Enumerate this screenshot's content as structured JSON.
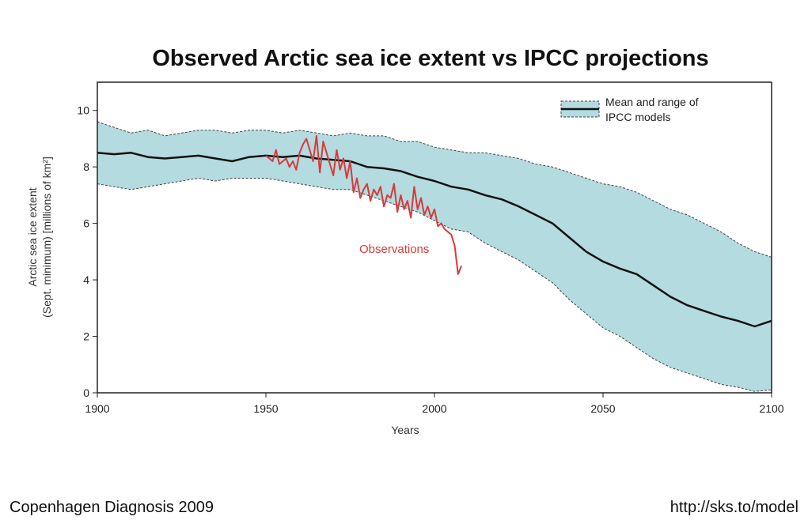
{
  "chart_data": {
    "type": "line",
    "title": "Observed Arctic sea ice extent vs IPCC projections",
    "xlabel": "Years",
    "ylabel_line1": "Arctic sea ice extent",
    "ylabel_line2": "(Sept. minimum) [millions of km²]",
    "xlim": [
      1900,
      2100
    ],
    "ylim": [
      0,
      11
    ],
    "x_ticks": [
      1900,
      1950,
      2000,
      2050,
      2100
    ],
    "y_ticks": [
      0,
      2,
      4,
      6,
      8,
      10
    ],
    "legend": {
      "position": "top-right",
      "line1": "Mean and range of",
      "line2": "IPCC models"
    },
    "annotation": "Observations",
    "colors": {
      "band_fill": "#b3dbe0",
      "band_edge": "#444444",
      "mean": "#111111",
      "observations": "#d83a3a"
    },
    "series": [
      {
        "name": "IPCC model mean",
        "x": [
          1900,
          1905,
          1910,
          1915,
          1920,
          1925,
          1930,
          1935,
          1940,
          1945,
          1950,
          1955,
          1960,
          1965,
          1970,
          1975,
          1980,
          1985,
          1990,
          1995,
          2000,
          2005,
          2010,
          2015,
          2020,
          2025,
          2030,
          2035,
          2040,
          2045,
          2050,
          2055,
          2060,
          2065,
          2070,
          2075,
          2080,
          2085,
          2090,
          2095,
          2100
        ],
        "y": [
          8.5,
          8.45,
          8.5,
          8.35,
          8.3,
          8.35,
          8.4,
          8.3,
          8.2,
          8.35,
          8.4,
          8.35,
          8.4,
          8.3,
          8.25,
          8.2,
          8.0,
          7.95,
          7.85,
          7.65,
          7.5,
          7.3,
          7.2,
          7.0,
          6.85,
          6.6,
          6.3,
          6.0,
          5.5,
          5.0,
          4.65,
          4.4,
          4.2,
          3.8,
          3.4,
          3.1,
          2.9,
          2.7,
          2.55,
          2.35,
          2.55
        ]
      },
      {
        "name": "IPCC range upper",
        "x": [
          1900,
          1905,
          1910,
          1915,
          1920,
          1925,
          1930,
          1935,
          1940,
          1945,
          1950,
          1955,
          1960,
          1965,
          1970,
          1975,
          1980,
          1985,
          1990,
          1995,
          2000,
          2005,
          2010,
          2015,
          2020,
          2025,
          2030,
          2035,
          2040,
          2045,
          2050,
          2055,
          2060,
          2065,
          2070,
          2075,
          2080,
          2085,
          2090,
          2095,
          2100
        ],
        "y": [
          9.6,
          9.4,
          9.2,
          9.3,
          9.1,
          9.2,
          9.3,
          9.3,
          9.2,
          9.3,
          9.3,
          9.2,
          9.3,
          9.2,
          9.1,
          9.2,
          9.1,
          9.1,
          8.9,
          8.9,
          8.7,
          8.6,
          8.5,
          8.5,
          8.4,
          8.3,
          8.1,
          8.0,
          7.8,
          7.6,
          7.4,
          7.3,
          7.1,
          6.8,
          6.5,
          6.3,
          6.0,
          5.7,
          5.3,
          5.0,
          4.8
        ]
      },
      {
        "name": "IPCC range lower",
        "x": [
          1900,
          1905,
          1910,
          1915,
          1920,
          1925,
          1930,
          1935,
          1940,
          1945,
          1950,
          1955,
          1960,
          1965,
          1970,
          1975,
          1980,
          1985,
          1990,
          1995,
          2000,
          2005,
          2010,
          2015,
          2020,
          2025,
          2030,
          2035,
          2040,
          2045,
          2050,
          2055,
          2060,
          2065,
          2070,
          2075,
          2080,
          2085,
          2090,
          2095,
          2100
        ],
        "y": [
          7.4,
          7.3,
          7.2,
          7.3,
          7.4,
          7.5,
          7.6,
          7.5,
          7.6,
          7.6,
          7.6,
          7.5,
          7.4,
          7.3,
          7.2,
          7.2,
          7.0,
          6.8,
          6.6,
          6.4,
          6.1,
          5.8,
          5.7,
          5.3,
          5.0,
          4.7,
          4.3,
          3.9,
          3.3,
          2.8,
          2.3,
          2.0,
          1.6,
          1.2,
          0.9,
          0.7,
          0.5,
          0.3,
          0.2,
          0.05,
          0.1
        ]
      },
      {
        "name": "Observations",
        "x": [
          1950,
          1952,
          1953,
          1954,
          1956,
          1957,
          1958,
          1959,
          1960,
          1961,
          1962,
          1963,
          1964,
          1965,
          1966,
          1967,
          1968,
          1969,
          1970,
          1971,
          1972,
          1973,
          1974,
          1975,
          1976,
          1977,
          1978,
          1979,
          1980,
          1981,
          1982,
          1983,
          1984,
          1985,
          1986,
          1987,
          1988,
          1989,
          1990,
          1991,
          1992,
          1993,
          1994,
          1995,
          1996,
          1997,
          1998,
          1999,
          2000,
          2001,
          2002,
          2003,
          2004,
          2005,
          2006,
          2007,
          2008
        ],
        "y": [
          8.4,
          8.2,
          8.6,
          8.1,
          8.3,
          8.0,
          8.2,
          7.9,
          8.5,
          8.8,
          9.0,
          8.6,
          8.2,
          9.1,
          7.8,
          8.9,
          8.5,
          8.1,
          7.7,
          8.6,
          7.9,
          8.3,
          7.6,
          8.2,
          7.1,
          7.6,
          6.9,
          7.2,
          7.4,
          6.8,
          7.2,
          7.0,
          7.3,
          6.6,
          7.0,
          6.9,
          7.4,
          6.4,
          7.0,
          6.5,
          6.8,
          6.2,
          7.3,
          6.5,
          6.9,
          6.3,
          6.6,
          6.2,
          6.5,
          5.9,
          6.0,
          5.8,
          5.7,
          5.6,
          5.2,
          4.2,
          4.5
        ]
      }
    ]
  },
  "footer": {
    "left": "Copenhagen Diagnosis 2009",
    "right": "http://sks.to/model"
  }
}
